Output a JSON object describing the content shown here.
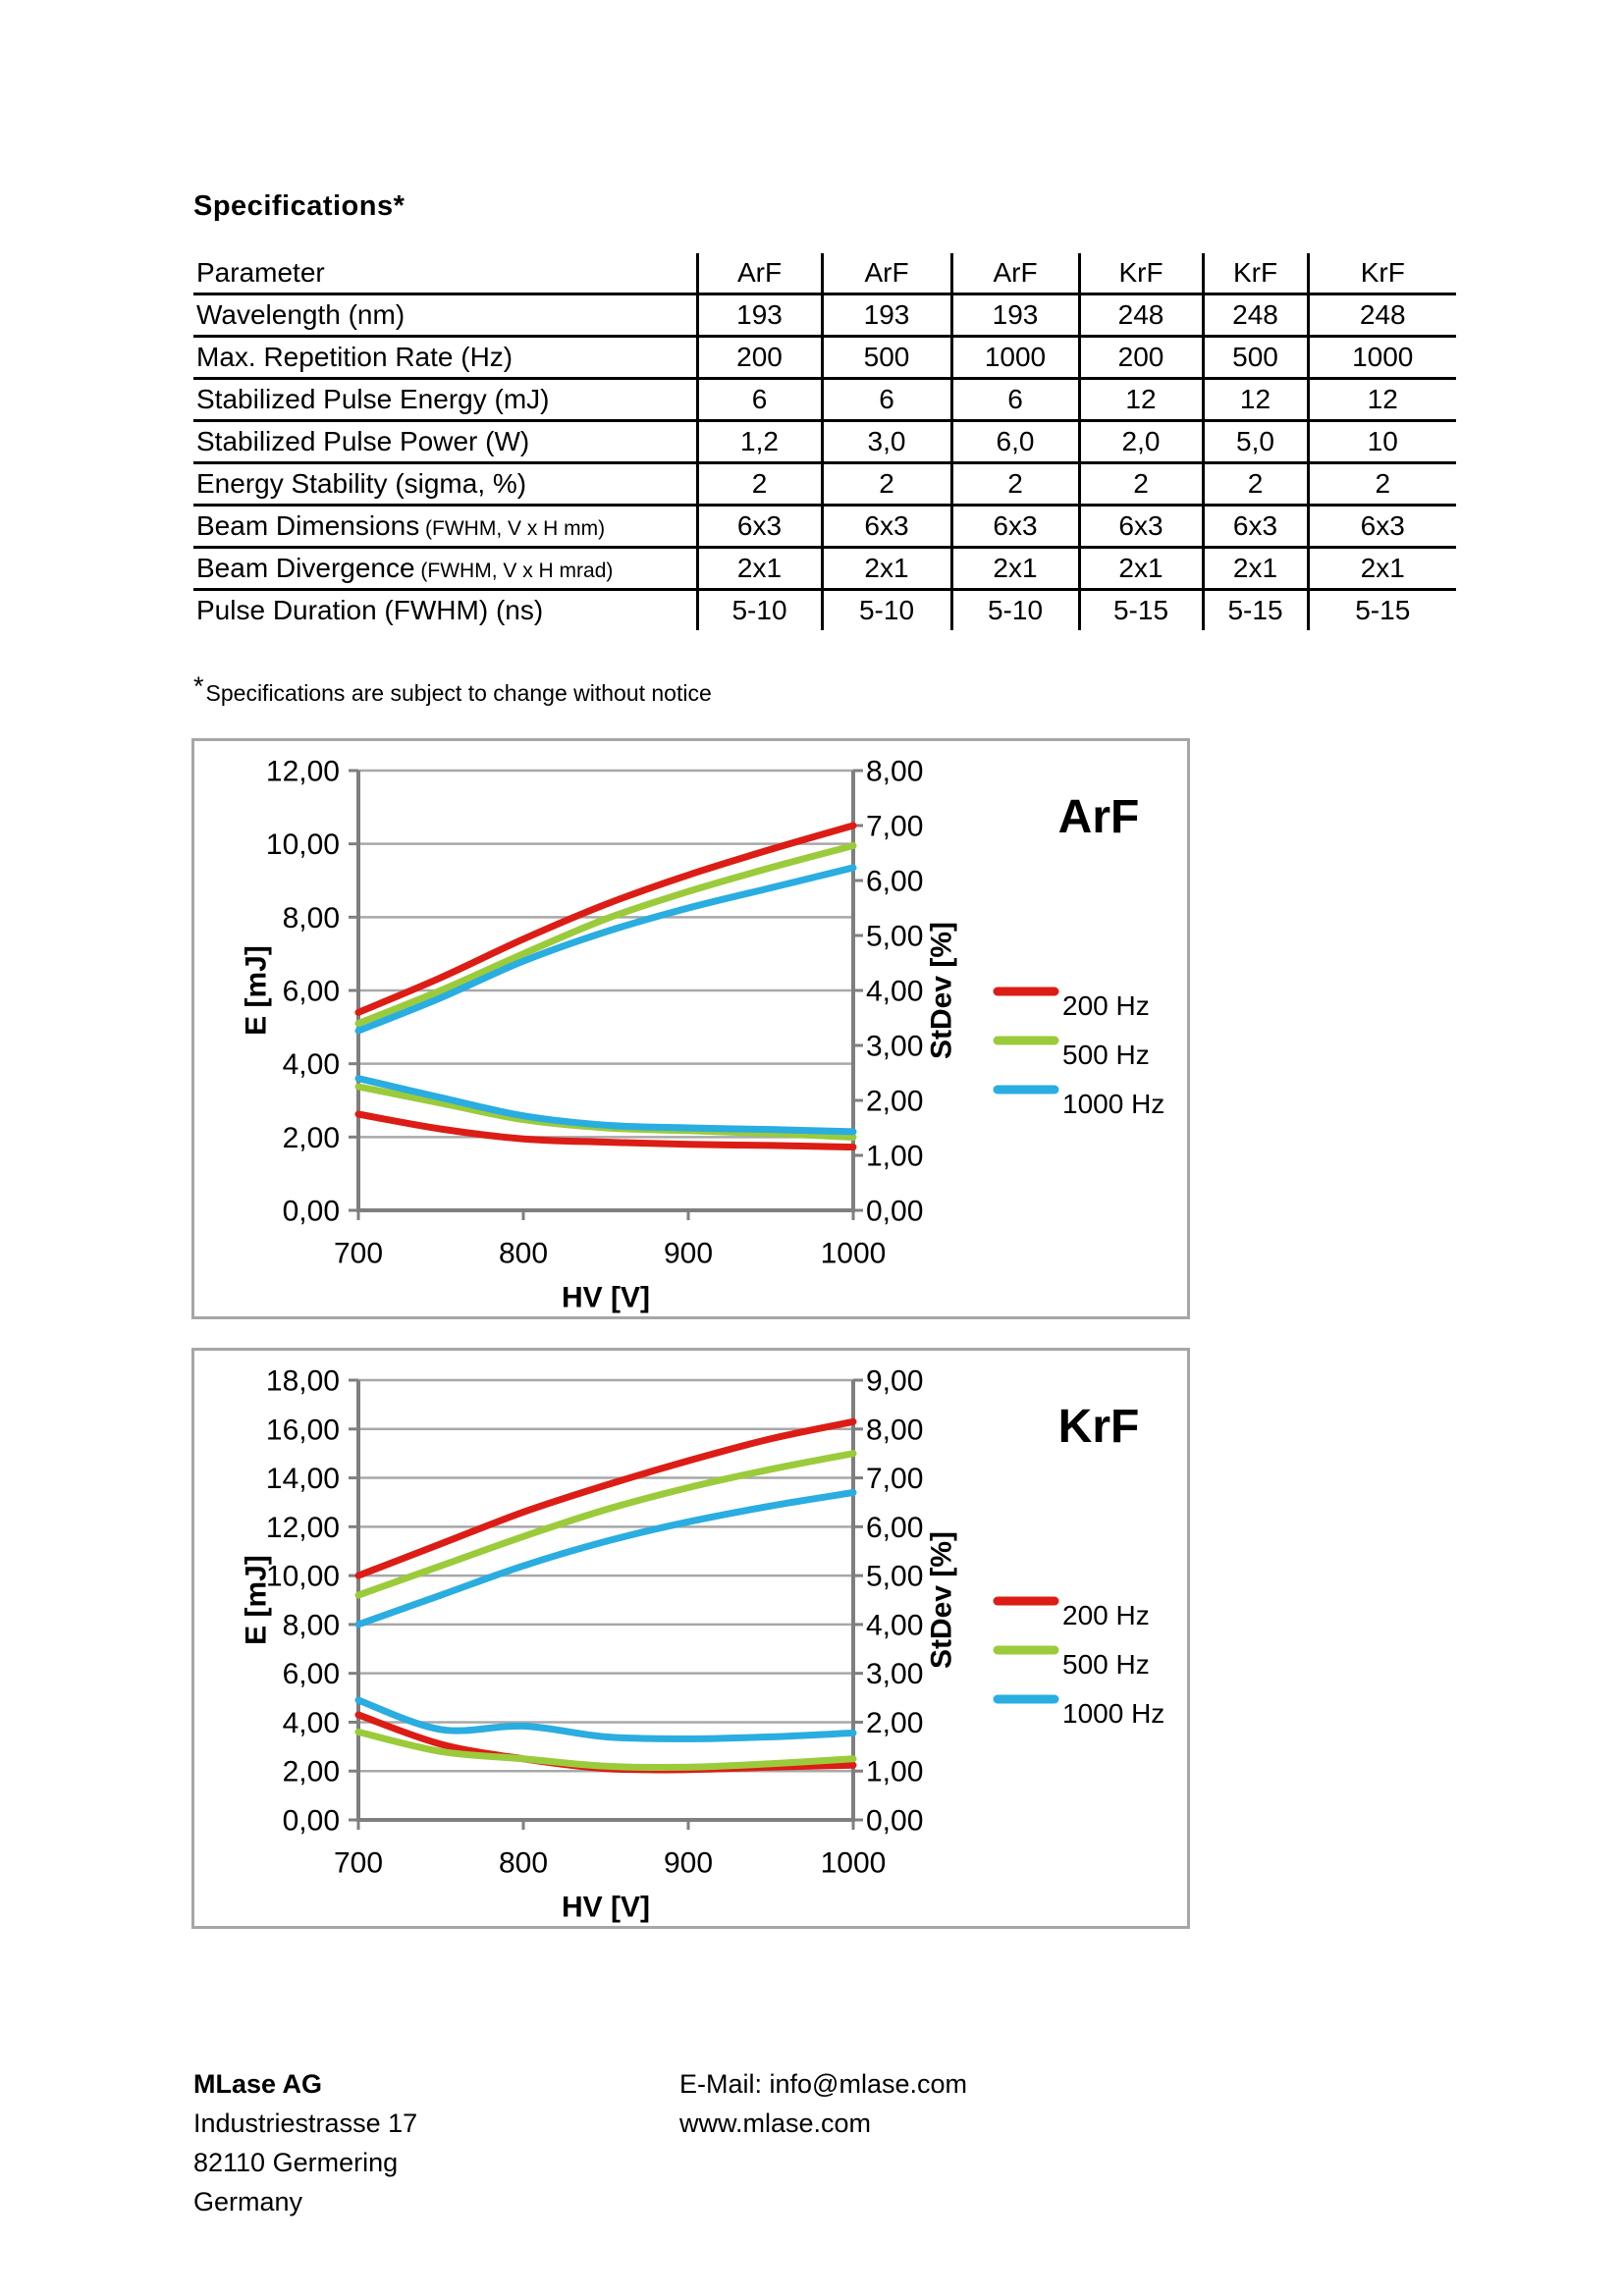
{
  "document": {
    "title": "Specifications*",
    "footnote_marker": "*",
    "footnote_text": "Specifications are subject to change without notice"
  },
  "spec_table": {
    "header": [
      "Parameter",
      "ArF",
      "ArF",
      "ArF",
      "KrF",
      "KrF",
      "KrF"
    ],
    "rows": [
      {
        "label": "Wavelength (nm)",
        "suffix": "",
        "values": [
          "193",
          "193",
          "193",
          "248",
          "248",
          "248"
        ]
      },
      {
        "label": "Max. Repetition Rate (Hz)",
        "suffix": "",
        "values": [
          "200",
          "500",
          "1000",
          "200",
          "500",
          "1000"
        ]
      },
      {
        "label": "Stabilized Pulse Energy (mJ)",
        "suffix": "",
        "values": [
          "6",
          "6",
          "6",
          "12",
          "12",
          "12"
        ]
      },
      {
        "label": "Stabilized Pulse Power (W)",
        "suffix": "",
        "values": [
          "1,2",
          "3,0",
          "6,0",
          "2,0",
          "5,0",
          "10"
        ]
      },
      {
        "label": "Energy Stability (sigma, %)",
        "suffix": "",
        "values": [
          "2",
          "2",
          "2",
          "2",
          "2",
          "2"
        ]
      },
      {
        "label": "Beam Dimensions",
        "suffix": " (FWHM, V x H mm)",
        "values": [
          "6x3",
          "6x3",
          "6x3",
          "6x3",
          "6x3",
          "6x3"
        ]
      },
      {
        "label": "Beam Divergence",
        "suffix": " (FWHM, V x H mrad)",
        "values": [
          "2x1",
          "2x1",
          "2x1",
          "2x1",
          "2x1",
          "2x1"
        ]
      },
      {
        "label": "Pulse Duration (FWHM) (ns)",
        "suffix": "",
        "values": [
          "5-10",
          "5-10",
          "5-10",
          "5-15",
          "5-15",
          "5-15"
        ]
      }
    ]
  },
  "chart_data": [
    {
      "type": "line",
      "title": "ArF",
      "xlabel": "HV [V]",
      "ylabel_left": "E [mJ]",
      "ylabel_right": "StDev [%]",
      "xlim": [
        700,
        1000
      ],
      "x_ticks": [
        700,
        800,
        900,
        1000
      ],
      "ylim_left": [
        0,
        12
      ],
      "ytick_step_left": 2,
      "ylim_right": [
        0,
        8
      ],
      "ytick_step_right": 1,
      "grid": "horizontal",
      "legend_position": "right",
      "decimal_separator": ",",
      "legend": [
        {
          "label": "200 Hz",
          "color": "#dc1d15"
        },
        {
          "label": "500 Hz",
          "color": "#9bcb3b"
        },
        {
          "label": "1000 Hz",
          "color": "#2aade0"
        }
      ],
      "x": [
        700,
        750,
        800,
        850,
        900,
        950,
        1000
      ],
      "series": [
        {
          "name": "E 200 Hz",
          "axis": "left",
          "color": "#dc1d15",
          "values": [
            5.4,
            6.35,
            7.4,
            8.35,
            9.15,
            9.85,
            10.5
          ]
        },
        {
          "name": "E 500 Hz",
          "axis": "left",
          "color": "#9bcb3b",
          "values": [
            5.1,
            6.0,
            7.0,
            7.95,
            8.7,
            9.35,
            9.95
          ]
        },
        {
          "name": "E 1000 Hz",
          "axis": "left",
          "color": "#2aade0",
          "values": [
            4.9,
            5.8,
            6.8,
            7.6,
            8.25,
            8.8,
            9.35
          ]
        },
        {
          "name": "StDev 200 Hz",
          "axis": "right",
          "color": "#dc1d15",
          "values": [
            1.75,
            1.48,
            1.3,
            1.24,
            1.2,
            1.18,
            1.15
          ]
        },
        {
          "name": "StDev 500 Hz",
          "axis": "right",
          "color": "#9bcb3b",
          "values": [
            2.25,
            1.95,
            1.65,
            1.5,
            1.45,
            1.4,
            1.33
          ]
        },
        {
          "name": "StDev 1000 Hz",
          "axis": "right",
          "color": "#2aade0",
          "values": [
            2.4,
            2.05,
            1.72,
            1.55,
            1.5,
            1.47,
            1.43
          ]
        }
      ]
    },
    {
      "type": "line",
      "title": "KrF",
      "xlabel": "HV [V]",
      "ylabel_left": "E [mJ]",
      "ylabel_right": "StDev [%]",
      "xlim": [
        700,
        1000
      ],
      "x_ticks": [
        700,
        800,
        900,
        1000
      ],
      "ylim_left": [
        0,
        18
      ],
      "ytick_step_left": 2,
      "ylim_right": [
        0,
        9
      ],
      "ytick_step_right": 1,
      "grid": "horizontal",
      "legend_position": "right",
      "decimal_separator": ",",
      "legend": [
        {
          "label": "200 Hz",
          "color": "#dc1d15"
        },
        {
          "label": "500 Hz",
          "color": "#9bcb3b"
        },
        {
          "label": "1000 Hz",
          "color": "#2aade0"
        }
      ],
      "x": [
        700,
        750,
        800,
        850,
        900,
        950,
        1000
      ],
      "series": [
        {
          "name": "E 200 Hz",
          "axis": "left",
          "color": "#dc1d15",
          "values": [
            10.0,
            11.3,
            12.6,
            13.7,
            14.7,
            15.6,
            16.3
          ]
        },
        {
          "name": "E 500 Hz",
          "axis": "left",
          "color": "#9bcb3b",
          "values": [
            9.2,
            10.4,
            11.6,
            12.7,
            13.6,
            14.35,
            15.0
          ]
        },
        {
          "name": "E 1000 Hz",
          "axis": "left",
          "color": "#2aade0",
          "values": [
            8.0,
            9.2,
            10.4,
            11.4,
            12.2,
            12.85,
            13.4
          ]
        },
        {
          "name": "StDev 200 Hz",
          "axis": "right",
          "color": "#dc1d15",
          "values": [
            2.15,
            1.55,
            1.25,
            1.05,
            1.03,
            1.08,
            1.12
          ]
        },
        {
          "name": "StDev 500 Hz",
          "axis": "right",
          "color": "#9bcb3b",
          "values": [
            1.8,
            1.4,
            1.25,
            1.1,
            1.08,
            1.15,
            1.25
          ]
        },
        {
          "name": "StDev 1000 Hz",
          "axis": "right",
          "color": "#2aade0",
          "values": [
            2.45,
            1.85,
            1.92,
            1.7,
            1.66,
            1.7,
            1.78
          ]
        }
      ]
    }
  ],
  "footer": {
    "company": "MLase AG",
    "address_lines": [
      "Industriestrasse 17",
      "82110 Germering",
      "Germany"
    ],
    "email": "E-Mail: info@mlase.com",
    "website": "www.mlase.com"
  }
}
